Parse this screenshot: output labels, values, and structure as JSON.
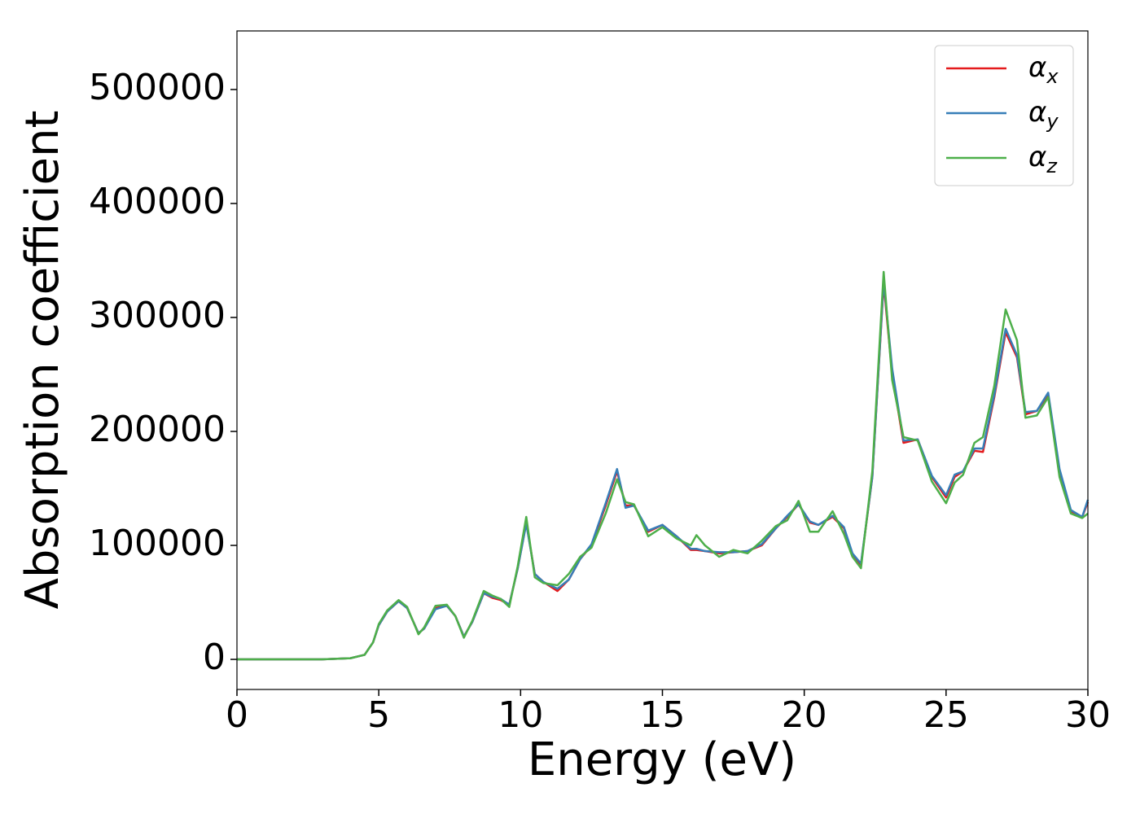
{
  "chart_data": {
    "type": "line",
    "xlabel": "Energy (eV)",
    "ylabel": "Absorption coefficient",
    "x": [
      0,
      1,
      2,
      3,
      4,
      4.5,
      4.8,
      5,
      5.3,
      5.7,
      6,
      6.4,
      6.6,
      7,
      7.4,
      7.7,
      8,
      8.3,
      8.7,
      9,
      9.3,
      9.6,
      9.9,
      10.2,
      10.5,
      10.8,
      11.3,
      11.7,
      12.1,
      12.5,
      13,
      13.4,
      13.7,
      14,
      14.5,
      15,
      15.5,
      16,
      16.2,
      16.5,
      17,
      17.5,
      18,
      18.5,
      19,
      19.4,
      19.8,
      20.2,
      20.5,
      21,
      21.4,
      21.7,
      22,
      22.4,
      22.8,
      23.1,
      23.5,
      24,
      24.5,
      25,
      25.3,
      25.6,
      26,
      26.3,
      26.7,
      27.1,
      27.5,
      27.8,
      28.2,
      28.6,
      29,
      29.4,
      29.8,
      30
    ],
    "series": [
      {
        "name": "αx",
        "color": "#e41a1c",
        "values": [
          0,
          0,
          0,
          0,
          1000,
          4000,
          15000,
          30000,
          42000,
          51000,
          45000,
          23000,
          27000,
          45000,
          47000,
          38000,
          20000,
          33000,
          58000,
          54000,
          52000,
          48000,
          80000,
          120000,
          75000,
          68000,
          60000,
          70000,
          88000,
          100000,
          135000,
          165000,
          135000,
          135000,
          112000,
          118000,
          108000,
          96000,
          96000,
          95000,
          93000,
          94000,
          95000,
          100000,
          115000,
          125000,
          136000,
          120000,
          118000,
          125000,
          115000,
          92000,
          83000,
          160000,
          330000,
          250000,
          190000,
          193000,
          160000,
          142000,
          160000,
          165000,
          183000,
          182000,
          230000,
          287000,
          265000,
          215000,
          218000,
          232000,
          165000,
          130000,
          125000,
          138000
        ]
      },
      {
        "name": "αy",
        "color": "#377eb8",
        "values": [
          0,
          0,
          0,
          0,
          1000,
          4000,
          15000,
          30000,
          42000,
          51000,
          45000,
          23000,
          27000,
          44000,
          47000,
          38000,
          20000,
          33000,
          58000,
          55000,
          53000,
          48000,
          80000,
          119000,
          75000,
          68000,
          62000,
          70000,
          88000,
          101000,
          137000,
          167000,
          133000,
          135000,
          113000,
          118000,
          108000,
          97000,
          97000,
          95000,
          94000,
          94000,
          95000,
          101000,
          115000,
          126000,
          136000,
          121000,
          118000,
          126000,
          116000,
          93000,
          84000,
          160000,
          332000,
          255000,
          192000,
          193000,
          161000,
          144000,
          162000,
          165000,
          185000,
          185000,
          232000,
          290000,
          267000,
          217000,
          218000,
          234000,
          167000,
          131000,
          125000,
          140000
        ]
      },
      {
        "name": "αz",
        "color": "#4daf4a",
        "values": [
          0,
          0,
          0,
          0,
          1000,
          4000,
          15000,
          31000,
          43000,
          52000,
          46000,
          22000,
          28000,
          47000,
          48000,
          38000,
          19000,
          34000,
          60000,
          56000,
          53000,
          46000,
          82000,
          125000,
          72000,
          67000,
          65000,
          75000,
          90000,
          98000,
          128000,
          158000,
          138000,
          136000,
          108000,
          116000,
          106000,
          100000,
          109000,
          100000,
          90000,
          96000,
          93000,
          104000,
          117000,
          122000,
          139000,
          112000,
          112000,
          130000,
          110000,
          90000,
          80000,
          165000,
          340000,
          245000,
          195000,
          192000,
          156000,
          137000,
          155000,
          162000,
          190000,
          195000,
          240000,
          307000,
          280000,
          212000,
          214000,
          230000,
          160000,
          128000,
          124000,
          128000
        ]
      }
    ],
    "xlim": [
      0,
      30
    ],
    "xticks": [
      0,
      5,
      10,
      15,
      20,
      25,
      30
    ],
    "ylim": [
      -26400,
      551400
    ],
    "yticks": [
      0,
      100000,
      200000,
      300000,
      400000,
      500000
    ],
    "grid": false,
    "legend": "upper right"
  }
}
